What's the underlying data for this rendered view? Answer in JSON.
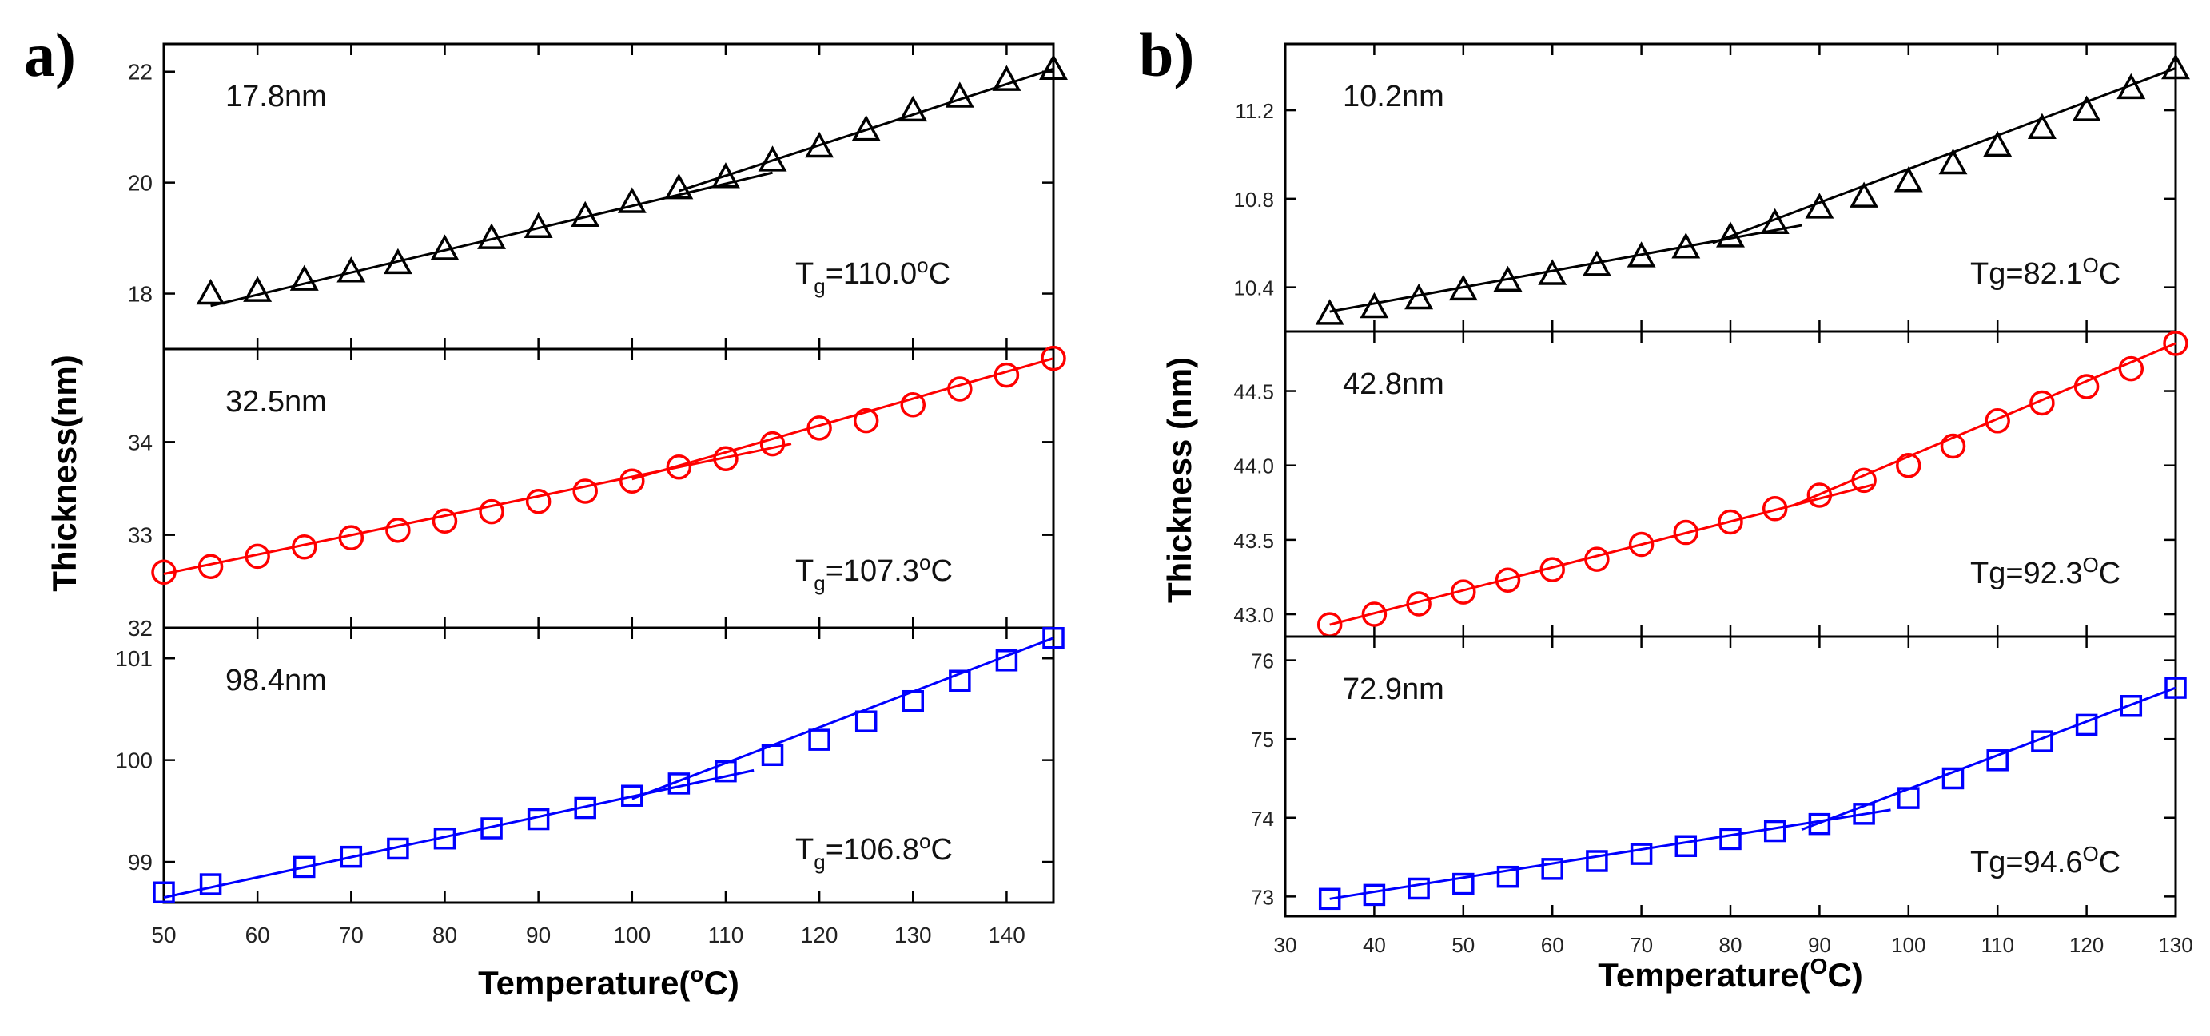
{
  "chart_data": [
    {
      "type": "scatter",
      "panel_label": "a)",
      "ylabel": "Thickness(nm)",
      "xlabel_main": "Temperature(",
      "xlabel_sup": "o",
      "xlabel_end": "C)",
      "x_ticks": [
        "50",
        "60",
        "70",
        "80",
        "90",
        "100",
        "110",
        "120",
        "130",
        "140"
      ],
      "xlim": [
        50,
        145
      ],
      "subplots": [
        {
          "name": "17.8nm",
          "thickness_label": "17.8nm",
          "tg_prefix": "T",
          "tg_sub": "g",
          "tg_value": "=110.0",
          "tg_sup": "o",
          "tg_unit": "C",
          "color": "#000000",
          "marker": "triangle",
          "ylim": [
            17.0,
            22.5
          ],
          "y_ticks": [
            "18",
            "20",
            "22"
          ],
          "y_tick_values": [
            18,
            20,
            22
          ],
          "x": [
            55,
            60,
            65,
            70,
            75,
            80,
            85,
            90,
            95,
            100,
            105,
            110,
            115,
            120,
            125,
            130,
            135,
            140,
            145
          ],
          "y": [
            18.0,
            18.05,
            18.25,
            18.4,
            18.55,
            18.8,
            19.0,
            19.2,
            19.4,
            19.65,
            19.9,
            20.1,
            20.4,
            20.65,
            20.95,
            21.3,
            21.55,
            21.85,
            22.05
          ],
          "fit_low": [
            [
              55,
              17.78
            ],
            [
              115,
              20.18
            ]
          ],
          "fit_high": [
            [
              105,
              19.85
            ],
            [
              145,
              22.05
            ]
          ]
        },
        {
          "name": "32.5nm",
          "thickness_label": "32.5nm",
          "tg_prefix": "T",
          "tg_sub": "g",
          "tg_value": "=107.3",
          "tg_sup": "o",
          "tg_unit": "C",
          "color": "#ff0000",
          "marker": "circle",
          "ylim": [
            32.0,
            35.0
          ],
          "y_ticks": [
            "32",
            "33",
            "34"
          ],
          "y_tick_values": [
            32,
            33,
            34
          ],
          "x": [
            50,
            55,
            60,
            65,
            70,
            75,
            80,
            85,
            90,
            95,
            100,
            105,
            110,
            115,
            120,
            125,
            130,
            135,
            140,
            145
          ],
          "y": [
            32.6,
            32.66,
            32.77,
            32.87,
            32.97,
            33.05,
            33.15,
            33.25,
            33.36,
            33.47,
            33.58,
            33.73,
            33.82,
            33.98,
            34.15,
            34.23,
            34.4,
            34.57,
            34.72,
            34.9
          ],
          "fit_low": [
            [
              50,
              32.58
            ],
            [
              117,
              33.98
            ]
          ],
          "fit_high": [
            [
              100,
              33.6
            ],
            [
              145,
              34.9
            ]
          ]
        },
        {
          "name": "98.4nm",
          "thickness_label": "98.4nm",
          "tg_prefix": "T",
          "tg_sub": "g",
          "tg_value": "=106.8",
          "tg_sup": "o",
          "tg_unit": "C",
          "color": "#0000ff",
          "marker": "square",
          "ylim": [
            98.6,
            101.3
          ],
          "y_ticks": [
            "99",
            "100",
            "101"
          ],
          "y_tick_values": [
            99,
            100,
            101
          ],
          "x": [
            50,
            55,
            65,
            70,
            75,
            80,
            85,
            90,
            95,
            100,
            105,
            110,
            115,
            120,
            125,
            130,
            135,
            140,
            145
          ],
          "y": [
            98.7,
            98.78,
            98.95,
            99.05,
            99.13,
            99.23,
            99.33,
            99.42,
            99.53,
            99.65,
            99.77,
            99.89,
            100.05,
            100.2,
            100.38,
            100.58,
            100.78,
            100.98,
            101.2
          ],
          "fit_low": [
            [
              50,
              98.65
            ],
            [
              113,
              99.9
            ]
          ],
          "fit_high": [
            [
              100,
              99.62
            ],
            [
              145,
              101.2
            ]
          ]
        }
      ]
    },
    {
      "type": "scatter",
      "panel_label": "b)",
      "ylabel": "Thickness (nm)",
      "xlabel_main": "Temperature(",
      "xlabel_sup": "O",
      "xlabel_end": "C)",
      "x_ticks": [
        "30",
        "40",
        "50",
        "60",
        "70",
        "80",
        "90",
        "100",
        "110",
        "120",
        "130"
      ],
      "xlim": [
        30,
        130
      ],
      "subplots": [
        {
          "name": "10.2nm",
          "thickness_label": "10.2nm",
          "tg_prefix": "Tg=82.1",
          "tg_sub": "",
          "tg_value": "",
          "tg_sup": "O",
          "tg_unit": "C",
          "color": "#000000",
          "marker": "triangle",
          "ylim": [
            10.2,
            11.5
          ],
          "y_ticks": [
            "10.4",
            "10.8",
            "11.2"
          ],
          "y_tick_values": [
            10.4,
            10.8,
            11.2
          ],
          "x": [
            35,
            40,
            45,
            50,
            55,
            60,
            65,
            70,
            75,
            80,
            85,
            90,
            95,
            100,
            105,
            110,
            115,
            120,
            125,
            130
          ],
          "y": [
            10.28,
            10.31,
            10.35,
            10.39,
            10.43,
            10.46,
            10.5,
            10.54,
            10.58,
            10.63,
            10.69,
            10.76,
            10.81,
            10.88,
            10.96,
            11.04,
            11.12,
            11.2,
            11.3,
            11.39
          ],
          "fit_low": [
            [
              35,
              10.29
            ],
            [
              88,
              10.68
            ]
          ],
          "fit_high": [
            [
              78,
              10.6
            ],
            [
              130,
              11.39
            ]
          ]
        },
        {
          "name": "42.8nm",
          "thickness_label": "42.8nm",
          "tg_prefix": "Tg=92.3",
          "tg_sub": "",
          "tg_value": "",
          "tg_sup": "O",
          "tg_unit": "C",
          "color": "#ff0000",
          "marker": "circle",
          "ylim": [
            42.85,
            44.9
          ],
          "y_ticks": [
            "43.0",
            "43.5",
            "44.0",
            "44.5"
          ],
          "y_tick_values": [
            43.0,
            43.5,
            44.0,
            44.5
          ],
          "x": [
            35,
            40,
            45,
            50,
            55,
            60,
            65,
            70,
            75,
            80,
            85,
            90,
            95,
            100,
            105,
            110,
            115,
            120,
            125,
            130
          ],
          "y": [
            42.93,
            43.0,
            43.07,
            43.15,
            43.23,
            43.3,
            43.37,
            43.47,
            43.55,
            43.62,
            43.71,
            43.8,
            43.9,
            44.0,
            44.13,
            44.3,
            44.42,
            44.53,
            44.65,
            44.82
          ],
          "fit_low": [
            [
              35,
              42.93
            ],
            [
              96,
              43.87
            ]
          ],
          "fit_high": [
            [
              87,
              43.73
            ],
            [
              130,
              44.82
            ]
          ]
        },
        {
          "name": "72.9nm",
          "thickness_label": "72.9nm",
          "tg_prefix": "Tg=94.6",
          "tg_sub": "",
          "tg_value": "",
          "tg_sup": "O",
          "tg_unit": "C",
          "color": "#0000ff",
          "marker": "square",
          "ylim": [
            72.75,
            76.3
          ],
          "y_ticks": [
            "73",
            "74",
            "75",
            "76"
          ],
          "y_tick_values": [
            73,
            74,
            75,
            76
          ],
          "x": [
            35,
            40,
            45,
            50,
            55,
            60,
            65,
            70,
            75,
            80,
            85,
            90,
            95,
            100,
            105,
            110,
            115,
            120,
            125,
            130
          ],
          "y": [
            72.97,
            73.02,
            73.1,
            73.16,
            73.25,
            73.35,
            73.45,
            73.54,
            73.64,
            73.73,
            73.83,
            73.92,
            74.05,
            74.25,
            74.5,
            74.73,
            74.97,
            75.18,
            75.42,
            75.65
          ],
          "fit_low": [
            [
              35,
              72.97
            ],
            [
              98,
              74.1
            ]
          ],
          "fit_high": [
            [
              88,
              73.85
            ],
            [
              130,
              75.65
            ]
          ]
        }
      ]
    }
  ]
}
